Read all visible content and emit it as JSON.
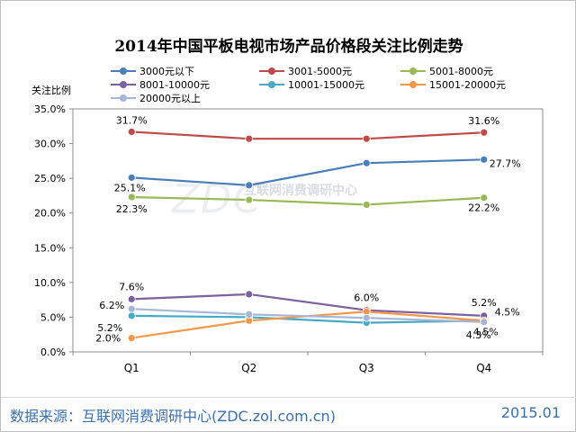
{
  "chart_data": {
    "type": "line",
    "title": "2014年中国平板电视市场产品价格段关注比例走势",
    "ylabel": "关注比例",
    "xlabel": "",
    "ylim": [
      0,
      35
    ],
    "yticks": [
      "0.0%",
      "5.0%",
      "10.0%",
      "15.0%",
      "20.0%",
      "25.0%",
      "30.0%",
      "35.0%"
    ],
    "categories": [
      "Q1",
      "Q2",
      "Q3",
      "Q4"
    ],
    "series": [
      {
        "name": "3000元以下",
        "color": "#4a7ebb",
        "values": [
          25.1,
          24.0,
          27.2,
          27.7
        ],
        "labels": [
          "25.1%",
          "",
          "",
          "27.7%"
        ]
      },
      {
        "name": "3001-5000元",
        "color": "#be4b48",
        "values": [
          31.7,
          30.7,
          30.7,
          31.6
        ],
        "labels": [
          "31.7%",
          "",
          "",
          "31.6%"
        ]
      },
      {
        "name": "5001-8000元",
        "color": "#98b954",
        "values": [
          22.3,
          21.9,
          21.2,
          22.2
        ],
        "labels": [
          "22.3%",
          "",
          "",
          "22.2%"
        ]
      },
      {
        "name": "8001-10000元",
        "color": "#7d60a0",
        "values": [
          7.6,
          8.3,
          6.0,
          5.2
        ],
        "labels": [
          "7.6%",
          "",
          "6.0%",
          "5.2%"
        ]
      },
      {
        "name": "10001-15000元",
        "color": "#46aac5",
        "values": [
          5.2,
          5.0,
          4.2,
          4.5
        ],
        "labels": [
          "5.2%",
          "",
          "",
          "4.5%"
        ]
      },
      {
        "name": "15001-20000元",
        "color": "#f79646",
        "values": [
          2.0,
          4.5,
          5.8,
          4.5
        ],
        "labels": [
          "2.0%",
          "",
          "",
          "4.5%"
        ]
      },
      {
        "name": "20000元以上",
        "color": "#a5b6d8",
        "values": [
          6.2,
          5.4,
          4.9,
          4.3
        ],
        "labels": [
          "6.2%",
          "",
          "",
          "4.3%"
        ]
      }
    ]
  },
  "footer": {
    "source": "数据来源：互联网消费调研中心(ZDC.zol.com.cn)",
    "date": "2015.01"
  },
  "watermark": {
    "main": "ZDC",
    "sub": "互联网消费调研中心"
  }
}
